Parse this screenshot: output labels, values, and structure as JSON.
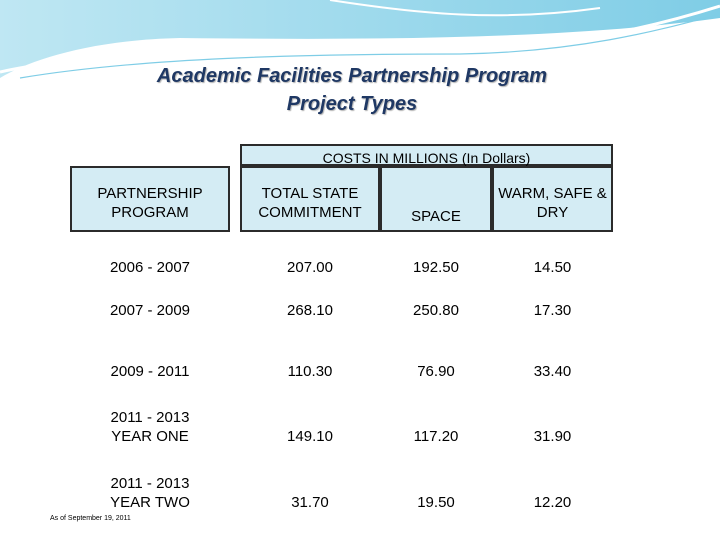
{
  "title": {
    "line1": "Academic Facilities Partnership Program",
    "line2": "Project Types"
  },
  "costs_header": "COSTS IN MILLIONS (In Dollars)",
  "columns": {
    "program_line1": "PARTNERSHIP",
    "program_line2": "PROGRAM",
    "total_line1": "TOTAL STATE",
    "total_line2": "COMMITMENT",
    "space": "SPACE",
    "warm_line1": "WARM, SAFE &",
    "warm_line2": "DRY"
  },
  "rows": [
    {
      "line1": "2006 - 2007",
      "line2": "",
      "total": "207.00",
      "space": "192.50",
      "warm": "14.50"
    },
    {
      "line1": "2007 - 2009",
      "line2": "",
      "total": "268.10",
      "space": "250.80",
      "warm": "17.30"
    },
    {
      "line1": "2009 - 2011",
      "line2": "",
      "total": "110.30",
      "space": "76.90",
      "warm": "33.40"
    },
    {
      "line1": "2011 - 2013",
      "line2": "YEAR ONE",
      "total": "149.10",
      "space": "117.20",
      "warm": "31.90"
    },
    {
      "line1": "2011 - 2013",
      "line2": "YEAR TWO",
      "total": "31.70",
      "space": "19.50",
      "warm": "12.20"
    }
  ],
  "footnote": "As of September 19, 2011",
  "colors": {
    "title": "#1f3864",
    "header_fill": "#d4ecf4",
    "border": "#2b2b2b",
    "swoosh": "#8fd3e8"
  }
}
